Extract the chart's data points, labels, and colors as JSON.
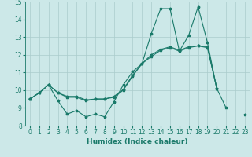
{
  "title": "",
  "xlabel": "Humidex (Indice chaleur)",
  "bg_color": "#cce8e8",
  "line_color": "#1a7a6a",
  "grid_color": "#aacccc",
  "x": [
    0,
    1,
    2,
    3,
    4,
    5,
    6,
    7,
    8,
    9,
    10,
    11,
    12,
    13,
    14,
    15,
    16,
    17,
    18,
    19,
    20,
    21,
    22,
    23
  ],
  "series1": [
    9.5,
    9.85,
    10.3,
    9.4,
    8.65,
    8.85,
    8.5,
    8.65,
    8.5,
    9.35,
    10.3,
    11.05,
    11.5,
    13.2,
    14.6,
    14.6,
    12.2,
    13.1,
    14.7,
    12.7,
    10.1,
    9.0,
    null,
    8.6
  ],
  "series2": [
    9.5,
    9.85,
    10.3,
    9.85,
    9.6,
    9.6,
    9.4,
    9.5,
    9.5,
    9.6,
    10.0,
    10.8,
    11.5,
    11.9,
    12.25,
    12.4,
    12.2,
    12.4,
    12.5,
    12.4,
    10.1,
    null,
    null,
    null
  ],
  "series3": [
    9.5,
    9.85,
    10.3,
    9.85,
    9.65,
    9.65,
    9.45,
    9.5,
    9.5,
    9.65,
    10.05,
    10.85,
    11.5,
    12.0,
    12.3,
    12.45,
    12.25,
    12.45,
    12.5,
    12.45,
    10.1,
    null,
    null,
    null
  ],
  "ylim": [
    8,
    15
  ],
  "xlim_min": -0.5,
  "xlim_max": 23.5,
  "yticks": [
    8,
    9,
    10,
    11,
    12,
    13,
    14,
    15
  ],
  "xticks": [
    0,
    1,
    2,
    3,
    4,
    5,
    6,
    7,
    8,
    9,
    10,
    11,
    12,
    13,
    14,
    15,
    16,
    17,
    18,
    19,
    20,
    21,
    22,
    23
  ],
  "marker": "*",
  "linewidth": 0.8,
  "markersize": 2.5,
  "xlabel_fontsize": 6.5,
  "tick_fontsize": 5.5
}
